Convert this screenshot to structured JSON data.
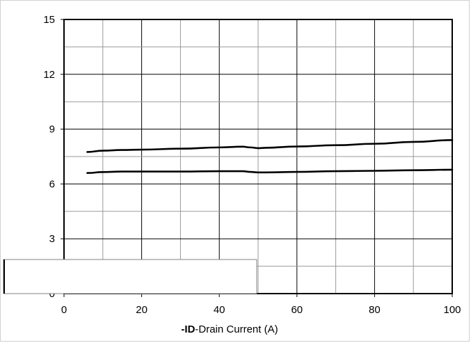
{
  "chart_data": {
    "type": "line",
    "title": "",
    "xlabel_bold": "-ID",
    "xlabel_rest": "-Drain Current  (A)",
    "ylabel": "",
    "xlim": [
      0,
      100
    ],
    "ylim": [
      0,
      15
    ],
    "x_ticks": [
      0,
      20,
      40,
      60,
      80,
      100
    ],
    "y_ticks": [
      0,
      3,
      6,
      9,
      12,
      15
    ],
    "grid": true,
    "series": [
      {
        "x": [
          6,
          10,
          15,
          20,
          30,
          40,
          46,
          48,
          50,
          52,
          60,
          70,
          80,
          90,
          100
        ],
        "y": [
          7.75,
          7.82,
          7.86,
          7.88,
          7.93,
          8.0,
          8.04,
          8.0,
          7.96,
          7.98,
          8.05,
          8.12,
          8.2,
          8.3,
          8.4
        ],
        "color": "#000000"
      },
      {
        "x": [
          6,
          10,
          15,
          20,
          30,
          40,
          46,
          48,
          50,
          52,
          60,
          70,
          80,
          90,
          100
        ],
        "y": [
          6.6,
          6.65,
          6.68,
          6.68,
          6.68,
          6.7,
          6.7,
          6.66,
          6.63,
          6.63,
          6.66,
          6.7,
          6.72,
          6.75,
          6.78
        ],
        "color": "#000000"
      }
    ]
  }
}
